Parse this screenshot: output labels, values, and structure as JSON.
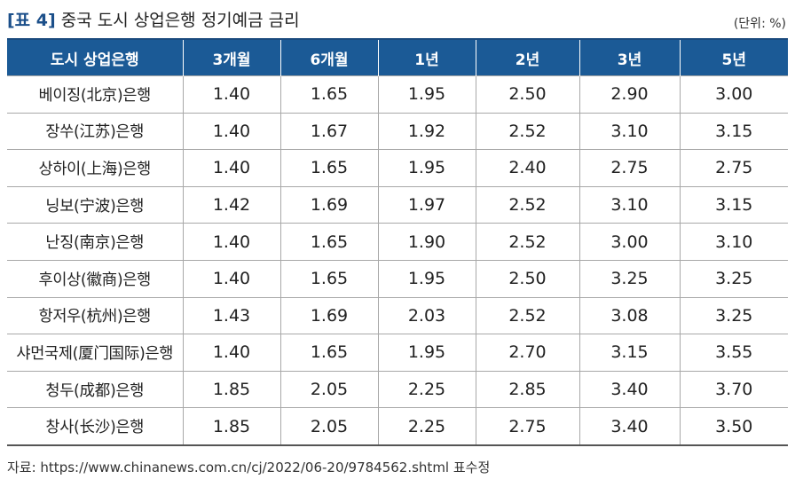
{
  "title": {
    "tag": "[표 4]",
    "text": "중국 도시 상업은행 정기예금 금리"
  },
  "unit": "(단위: %)",
  "table": {
    "headers": [
      "도시 상업은행",
      "3개월",
      "6개월",
      "1년",
      "2년",
      "3년",
      "5년"
    ],
    "rows": [
      {
        "bank": "베이징(北京)은행",
        "values": [
          "1.40",
          "1.65",
          "1.95",
          "2.50",
          "2.90",
          "3.00"
        ]
      },
      {
        "bank": "장쑤(江苏)은행",
        "values": [
          "1.40",
          "1.67",
          "1.92",
          "2.52",
          "3.10",
          "3.15"
        ]
      },
      {
        "bank": "상하이(上海)은행",
        "values": [
          "1.40",
          "1.65",
          "1.95",
          "2.40",
          "2.75",
          "2.75"
        ]
      },
      {
        "bank": "닝보(宁波)은행",
        "values": [
          "1.42",
          "1.69",
          "1.97",
          "2.52",
          "3.10",
          "3.15"
        ]
      },
      {
        "bank": "난징(南京)은행",
        "values": [
          "1.40",
          "1.65",
          "1.90",
          "2.52",
          "3.00",
          "3.10"
        ]
      },
      {
        "bank": "후이상(徽商)은행",
        "values": [
          "1.40",
          "1.65",
          "1.95",
          "2.50",
          "3.25",
          "3.25"
        ]
      },
      {
        "bank": "항저우(杭州)은행",
        "values": [
          "1.43",
          "1.69",
          "2.03",
          "2.52",
          "3.08",
          "3.25"
        ]
      },
      {
        "bank": "샤먼국제(厦门国际)은행",
        "values": [
          "1.40",
          "1.65",
          "1.95",
          "2.70",
          "3.15",
          "3.55"
        ]
      },
      {
        "bank": "청두(成都)은행",
        "values": [
          "1.85",
          "2.05",
          "2.25",
          "2.85",
          "3.40",
          "3.70"
        ]
      },
      {
        "bank": "창사(长沙)은행",
        "values": [
          "1.85",
          "2.05",
          "2.25",
          "2.75",
          "3.40",
          "3.50"
        ]
      }
    ]
  },
  "source": "자료: https://www.chinanews.com.cn/cj/2022/06-20/9784562.shtml 표수정"
}
